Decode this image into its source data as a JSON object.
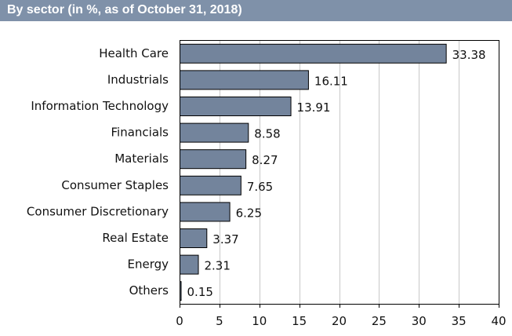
{
  "header": {
    "title": "By sector (in %, as of October 31, 2018)",
    "color": "#7f91a9"
  },
  "chart_data": {
    "type": "bar",
    "orientation": "horizontal",
    "title": "By sector (in %, as of October 31, 2018)",
    "xlabel": "",
    "ylabel": "",
    "categories": [
      "Health Care",
      "Industrials",
      "Information Technology",
      "Financials",
      "Materials",
      "Consumer Staples",
      "Consumer Discretionary",
      "Real Estate",
      "Energy",
      "Others"
    ],
    "values": [
      33.38,
      16.11,
      13.91,
      8.58,
      8.27,
      7.65,
      6.25,
      3.37,
      2.31,
      0.15
    ],
    "value_labels": [
      "33.38",
      "16.11",
      "13.91",
      "8.58",
      "8.27",
      "7.65",
      "6.25",
      "3.37",
      "2.31",
      "0.15"
    ],
    "xlim": [
      0,
      40
    ],
    "xticks": [
      0,
      5,
      10,
      15,
      20,
      25,
      30,
      35,
      40
    ],
    "xtick_labels": [
      "0",
      "5",
      "10",
      "15",
      "20",
      "25",
      "30",
      "35",
      "40"
    ],
    "grid": true,
    "legend": "none",
    "bar_color": "#73849c",
    "gridline_color": "#c8c8c8"
  }
}
